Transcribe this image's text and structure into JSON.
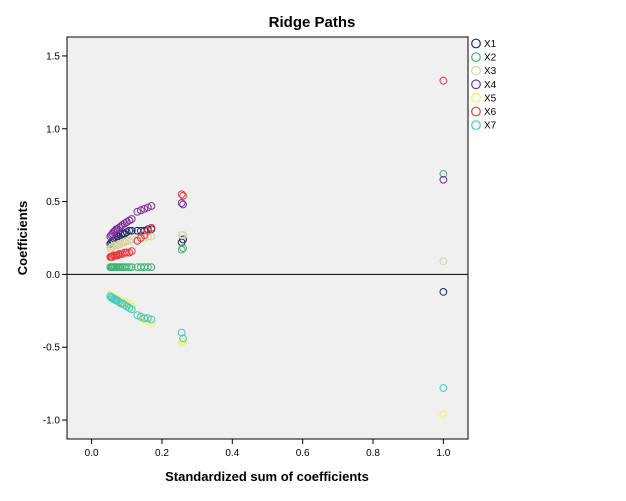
{
  "chart_data": {
    "type": "scatter",
    "title": "Ridge Paths",
    "xlabel": "Standardized sum of coefficients",
    "ylabel": "Coefficients",
    "xlim": [
      -0.07,
      1.07
    ],
    "ylim": [
      -1.13,
      1.63
    ],
    "xticks": [
      0.0,
      0.2,
      0.4,
      0.6,
      0.8,
      1.0
    ],
    "xtick_labels": [
      "0.0",
      "0.2",
      "0.4",
      "0.6",
      "0.8",
      "1.0"
    ],
    "yticks": [
      1.5,
      1.0,
      0.5,
      0.0,
      -0.5,
      -1.0
    ],
    "ytick_labels": [
      "1.5",
      "1.0",
      "0.5",
      "0.0",
      "-0.5",
      "-1.0"
    ],
    "grid": false,
    "reference_line_y": 0,
    "legend_position": "right",
    "background": "#f0f0f0",
    "x": [
      0.053,
      0.056,
      0.059,
      0.062,
      0.066,
      0.07,
      0.074,
      0.078,
      0.083,
      0.088,
      0.094,
      0.1,
      0.107,
      0.114,
      0.13,
      0.14,
      0.15,
      0.16,
      0.17,
      0.256,
      0.26,
      1.0
    ],
    "series": [
      {
        "name": "X1",
        "color": "#1f2a66",
        "values": [
          0.21,
          0.22,
          0.23,
          0.23,
          0.24,
          0.25,
          0.26,
          0.26,
          0.27,
          0.28,
          0.28,
          0.29,
          0.3,
          0.3,
          0.3,
          0.3,
          0.3,
          0.31,
          0.31,
          0.22,
          0.24,
          -0.12
        ]
      },
      {
        "name": "X2",
        "color": "#3cb371",
        "values": [
          0.05,
          0.05,
          0.05,
          0.05,
          0.05,
          0.05,
          0.05,
          0.05,
          0.05,
          0.05,
          0.05,
          0.05,
          0.05,
          0.05,
          0.05,
          0.05,
          0.05,
          0.05,
          0.05,
          0.17,
          0.18,
          0.69
        ]
      },
      {
        "name": "X3",
        "color": "#d8d2a0",
        "values": [
          0.18,
          0.18,
          0.19,
          0.19,
          0.2,
          0.2,
          0.2,
          0.21,
          0.21,
          0.22,
          0.22,
          0.23,
          0.23,
          0.24,
          0.24,
          0.25,
          0.25,
          0.26,
          0.26,
          0.27,
          0.27,
          0.09
        ]
      },
      {
        "name": "X4",
        "color": "#7b2d9a",
        "values": [
          0.26,
          0.27,
          0.28,
          0.29,
          0.3,
          0.31,
          0.31,
          0.32,
          0.33,
          0.34,
          0.35,
          0.36,
          0.37,
          0.38,
          0.43,
          0.44,
          0.45,
          0.46,
          0.47,
          0.49,
          0.48,
          0.65
        ]
      },
      {
        "name": "X5",
        "color": "#f5f060",
        "values": [
          -0.14,
          -0.15,
          -0.15,
          -0.16,
          -0.16,
          -0.17,
          -0.17,
          -0.18,
          -0.18,
          -0.19,
          -0.19,
          -0.2,
          -0.21,
          -0.22,
          -0.28,
          -0.3,
          -0.31,
          -0.32,
          -0.34,
          -0.47,
          -0.46,
          -0.96
        ]
      },
      {
        "name": "X6",
        "color": "#e8393e",
        "values": [
          0.12,
          0.12,
          0.12,
          0.13,
          0.13,
          0.13,
          0.13,
          0.14,
          0.14,
          0.14,
          0.15,
          0.15,
          0.15,
          0.16,
          0.23,
          0.25,
          0.27,
          0.3,
          0.32,
          0.55,
          0.54,
          1.33
        ]
      },
      {
        "name": "X7",
        "color": "#40c8c8",
        "values": [
          -0.15,
          -0.16,
          -0.16,
          -0.17,
          -0.17,
          -0.18,
          -0.18,
          -0.19,
          -0.2,
          -0.2,
          -0.21,
          -0.22,
          -0.23,
          -0.24,
          -0.28,
          -0.29,
          -0.3,
          -0.3,
          -0.31,
          -0.4,
          -0.44,
          -0.78
        ]
      }
    ]
  }
}
